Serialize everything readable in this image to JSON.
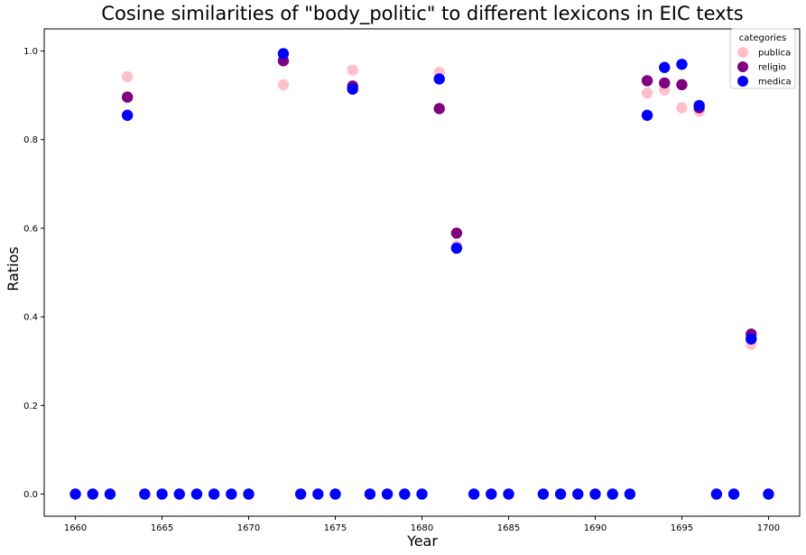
{
  "chart_data": {
    "type": "scatter",
    "title": "Cosine similarities of \"body_politic\" to different lexicons in EIC texts",
    "xlabel": "Year",
    "ylabel": "Ratios",
    "xlim": [
      1658.2,
      1701.8
    ],
    "ylim": [
      -0.05,
      1.05
    ],
    "xticks": [
      1660,
      1665,
      1670,
      1675,
      1680,
      1685,
      1690,
      1695,
      1700
    ],
    "yticks": [
      0.0,
      0.2,
      0.4,
      0.6,
      0.8,
      1.0
    ],
    "ytick_labels": [
      "0.0",
      "0.2",
      "0.4",
      "0.6",
      "0.8",
      "1.0"
    ],
    "grid": false,
    "legend": {
      "title": "categories",
      "placement": "top-right"
    },
    "series": [
      {
        "name": "publica",
        "color": "#ffc0cb",
        "points": [
          [
            1663,
            0.942
          ],
          [
            1672,
            0.924
          ],
          [
            1676,
            0.957
          ],
          [
            1681,
            0.952
          ],
          [
            1682,
            0.56
          ],
          [
            1693,
            0.905
          ],
          [
            1694,
            0.912
          ],
          [
            1695,
            0.872
          ],
          [
            1696,
            0.864
          ],
          [
            1699,
            0.338
          ]
        ]
      },
      {
        "name": "religio",
        "color": "#800080",
        "points": [
          [
            1663,
            0.896
          ],
          [
            1672,
            0.978
          ],
          [
            1676,
            0.921
          ],
          [
            1681,
            0.87
          ],
          [
            1682,
            0.589
          ],
          [
            1693,
            0.933
          ],
          [
            1694,
            0.928
          ],
          [
            1695,
            0.924
          ],
          [
            1696,
            0.872
          ],
          [
            1699,
            0.361
          ]
        ]
      },
      {
        "name": "medica",
        "color": "#0000ff",
        "points": [
          [
            1660,
            0.0
          ],
          [
            1661,
            0.0
          ],
          [
            1662,
            0.0
          ],
          [
            1663,
            0.855
          ],
          [
            1664,
            0.0
          ],
          [
            1665,
            0.0
          ],
          [
            1666,
            0.0
          ],
          [
            1667,
            0.0
          ],
          [
            1668,
            0.0
          ],
          [
            1669,
            0.0
          ],
          [
            1670,
            0.0
          ],
          [
            1672,
            0.994
          ],
          [
            1673,
            0.0
          ],
          [
            1674,
            0.0
          ],
          [
            1675,
            0.0
          ],
          [
            1676,
            0.914
          ],
          [
            1677,
            0.0
          ],
          [
            1678,
            0.0
          ],
          [
            1679,
            0.0
          ],
          [
            1680,
            0.0
          ],
          [
            1681,
            0.937
          ],
          [
            1682,
            0.555
          ],
          [
            1683,
            0.0
          ],
          [
            1684,
            0.0
          ],
          [
            1685,
            0.0
          ],
          [
            1687,
            0.0
          ],
          [
            1688,
            0.0
          ],
          [
            1689,
            0.0
          ],
          [
            1690,
            0.0
          ],
          [
            1691,
            0.0
          ],
          [
            1692,
            0.0
          ],
          [
            1693,
            0.855
          ],
          [
            1694,
            0.963
          ],
          [
            1695,
            0.97
          ],
          [
            1696,
            0.877
          ],
          [
            1697,
            0.0
          ],
          [
            1698,
            0.0
          ],
          [
            1699,
            0.35
          ],
          [
            1700,
            0.0
          ]
        ]
      }
    ]
  }
}
